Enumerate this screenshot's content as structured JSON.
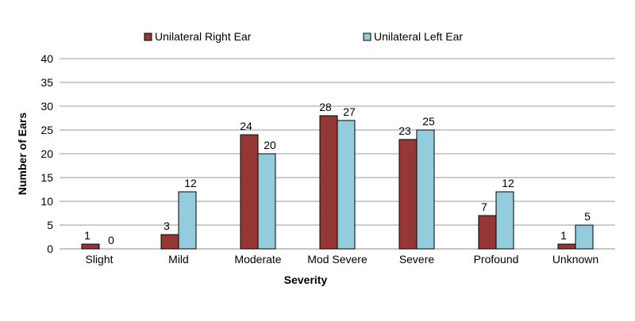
{
  "chart_data": {
    "type": "bar",
    "title": "",
    "xlabel": "Severity",
    "ylabel": "Number of Ears",
    "ylim": [
      0,
      40
    ],
    "yticks": [
      0,
      5,
      10,
      15,
      20,
      25,
      30,
      35,
      40
    ],
    "grid": true,
    "legend_position": "top",
    "categories": [
      "Slight",
      "Mild",
      "Moderate",
      "Mod Severe",
      "Severe",
      "Profound",
      "Unknown"
    ],
    "series": [
      {
        "name": "Unilateral Right Ear",
        "color": "#953735",
        "values": [
          1,
          3,
          24,
          28,
          23,
          7,
          1
        ]
      },
      {
        "name": "Unilateral Left Ear",
        "color": "#93CDDD",
        "values": [
          0,
          12,
          20,
          27,
          25,
          12,
          5
        ]
      }
    ]
  }
}
